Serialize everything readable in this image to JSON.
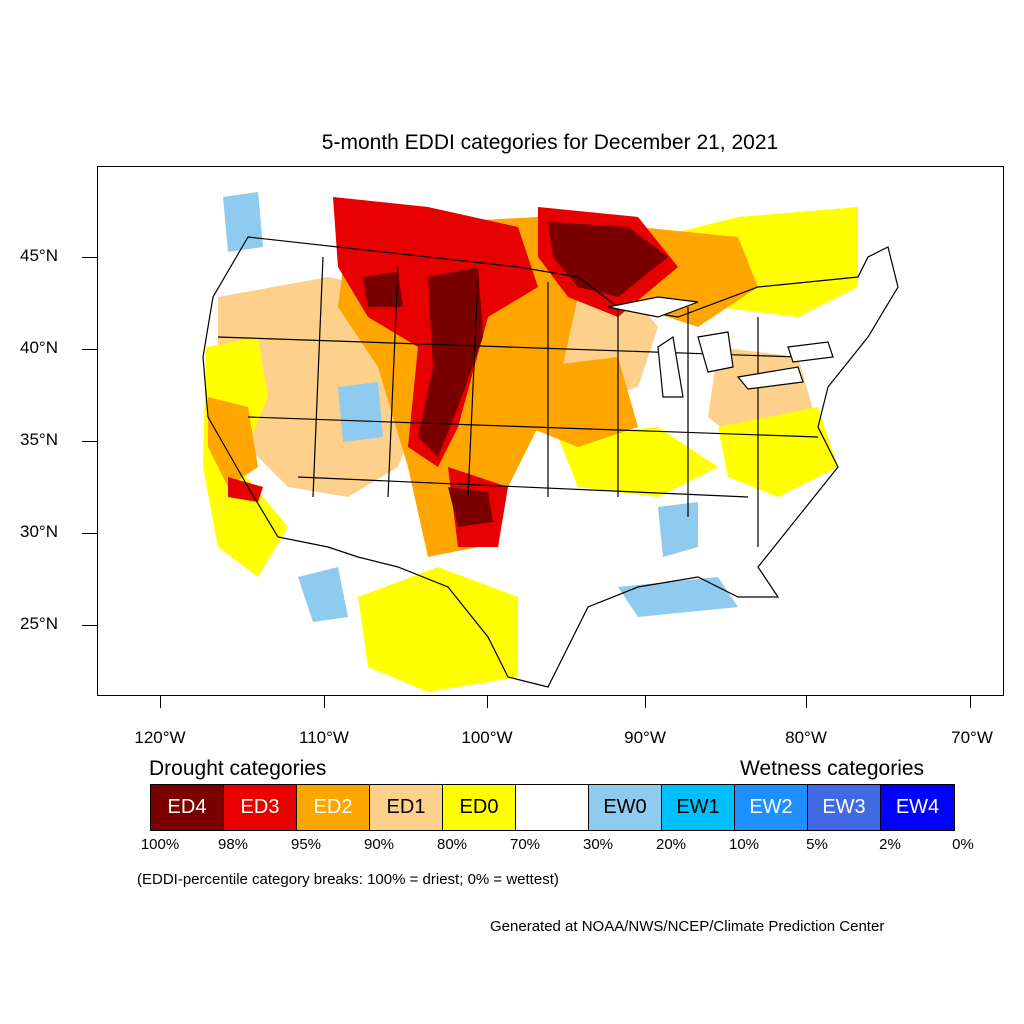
{
  "title": "5-month EDDI categories for December 21, 2021",
  "lat_labels": [
    "45°N",
    "40°N",
    "35°N",
    "30°N",
    "25°N"
  ],
  "lon_labels": [
    "120°W",
    "110°W",
    "100°W",
    "90°W",
    "80°W",
    "70°W"
  ],
  "legend": {
    "drought_heading": "Drought categories",
    "wetness_heading": "Wetness categories",
    "categories": [
      {
        "label": "ED4",
        "color": "#7a0000",
        "text_color": "#ffffff"
      },
      {
        "label": "ED3",
        "color": "#e60000",
        "text_color": "#ffffff"
      },
      {
        "label": "ED2",
        "color": "#ffa500",
        "text_color": "#ffffff"
      },
      {
        "label": "ED1",
        "color": "#fdd18b",
        "text_color": "#000000"
      },
      {
        "label": "ED0",
        "color": "#ffff00",
        "text_color": "#000000"
      },
      {
        "label": "",
        "color": "#ffffff",
        "text_color": "#000000"
      },
      {
        "label": "EW0",
        "color": "#8ecbef",
        "text_color": "#000000"
      },
      {
        "label": "EW1",
        "color": "#00bfff",
        "text_color": "#000000"
      },
      {
        "label": "EW2",
        "color": "#1e90ff",
        "text_color": "#ffffff"
      },
      {
        "label": "EW3",
        "color": "#4169e1",
        "text_color": "#ffffff"
      },
      {
        "label": "EW4",
        "color": "#0000ff",
        "text_color": "#ffffff"
      }
    ],
    "breaks": [
      "100%",
      "98%",
      "95%",
      "90%",
      "80%",
      "70%",
      "30%",
      "20%",
      "10%",
      "5%",
      "2%",
      "0%"
    ]
  },
  "note": "(EDDI-percentile category breaks: 100% = driest; 0% = wettest)",
  "credit": "Generated at NOAA/NWS/NCEP/Climate Prediction Center"
}
